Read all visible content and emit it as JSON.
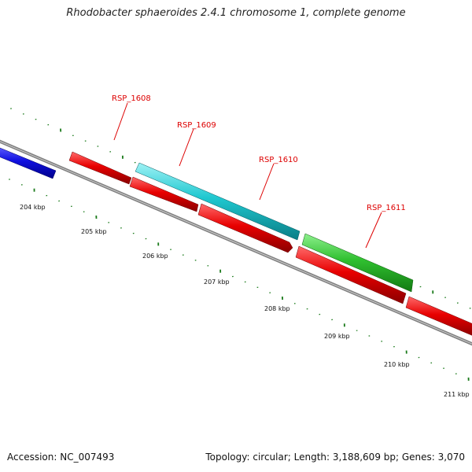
{
  "title": "Rhodobacter sphaeroides 2.4.1 chromosome 1, complete genome",
  "footer": {
    "accession": "Accession: NC_007493",
    "stats": "Topology: circular; Length: 3,188,609 bp; Genes: 3,070"
  },
  "ticks": [
    {
      "label": "204 kbp"
    },
    {
      "label": "205 kbp"
    },
    {
      "label": "206 kbp"
    },
    {
      "label": "207 kbp"
    },
    {
      "label": "208 kbp"
    },
    {
      "label": "209 kbp"
    },
    {
      "label": "210 kbp"
    },
    {
      "label": "211 kbp"
    }
  ],
  "genes": [
    {
      "label": "RSP_1608"
    },
    {
      "label": "RSP_1609"
    },
    {
      "label": "RSP_1610"
    },
    {
      "label": "RSP_1611"
    }
  ],
  "colors": {
    "backbone": "#808080",
    "tick": "#1a7a1a",
    "label": "#dd0000",
    "blue": "#1010e0",
    "red": "#e80000",
    "cyan": "#20c8d0",
    "green": "#30c030"
  }
}
